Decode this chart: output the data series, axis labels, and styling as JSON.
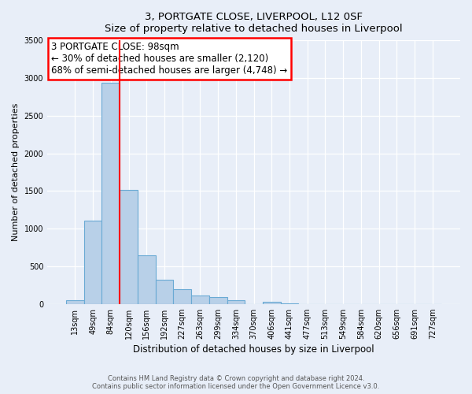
{
  "title": "3, PORTGATE CLOSE, LIVERPOOL, L12 0SF",
  "subtitle": "Size of property relative to detached houses in Liverpool",
  "xlabel": "Distribution of detached houses by size in Liverpool",
  "ylabel": "Number of detached properties",
  "bar_labels": [
    "13sqm",
    "49sqm",
    "84sqm",
    "120sqm",
    "156sqm",
    "192sqm",
    "227sqm",
    "263sqm",
    "299sqm",
    "334sqm",
    "370sqm",
    "406sqm",
    "441sqm",
    "477sqm",
    "513sqm",
    "549sqm",
    "584sqm",
    "620sqm",
    "656sqm",
    "691sqm",
    "727sqm"
  ],
  "bar_values": [
    45,
    1110,
    2940,
    1510,
    650,
    325,
    195,
    110,
    90,
    45,
    0,
    30,
    10,
    0,
    0,
    0,
    0,
    0,
    0,
    0,
    0
  ],
  "bar_color": "#b8d0e8",
  "bar_edge_color": "#6aaad4",
  "ylim": [
    0,
    3500
  ],
  "yticks": [
    0,
    500,
    1000,
    1500,
    2000,
    2500,
    3000,
    3500
  ],
  "annotation_title": "3 PORTGATE CLOSE: 98sqm",
  "annotation_line1": "← 30% of detached houses are smaller (2,120)",
  "annotation_line2": "68% of semi-detached houses are larger (4,748) →",
  "footnote1": "Contains HM Land Registry data © Crown copyright and database right 2024.",
  "footnote2": "Contains public sector information licensed under the Open Government Licence v3.0.",
  "bg_color": "#e8eef8"
}
